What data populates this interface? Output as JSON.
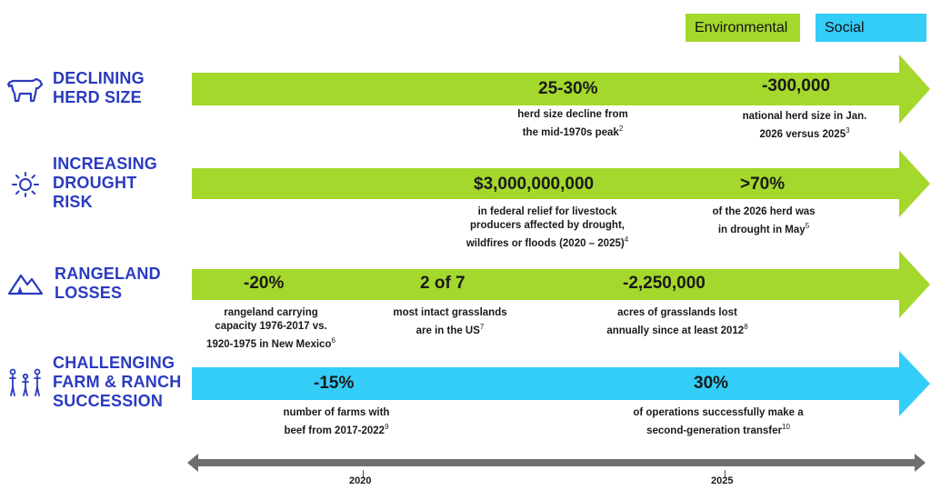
{
  "legend": {
    "environmental": {
      "label": "Environmental",
      "color": "#a4d82c"
    },
    "social": {
      "label": "Social",
      "color": "#33cdf7"
    }
  },
  "rows": [
    {
      "icon": "cow-icon",
      "label_lines": [
        "DECLINING",
        "HERD SIZE"
      ],
      "category": "Environmental",
      "stats": [
        {
          "value": "25-30%",
          "lines": [
            "herd size decline from",
            "the mid-1970s peak"
          ],
          "ref": "2"
        },
        {
          "value": "-300,000",
          "lines": [
            "national herd size in Jan.",
            "2026 versus 2025"
          ],
          "ref": "3"
        }
      ]
    },
    {
      "icon": "sun-icon",
      "label_lines": [
        "INCREASING",
        "DROUGHT",
        "RISK"
      ],
      "category": "Environmental",
      "stats": [
        {
          "value": "$3,000,000,000",
          "lines": [
            "in federal relief for livestock",
            "producers affected by drought,",
            "wildfires or floods (2020 – 2025)"
          ],
          "ref": "4"
        },
        {
          "value": ">70%",
          "lines": [
            "of the 2026 herd was",
            "in drought in May"
          ],
          "ref": "5"
        }
      ]
    },
    {
      "icon": "mountain-icon",
      "label_lines": [
        "RANGELAND",
        "LOSSES"
      ],
      "category": "Environmental",
      "stats": [
        {
          "value": "-20%",
          "lines": [
            "rangeland carrying",
            "capacity 1976-2017 vs.",
            "1920-1975 in New Mexico"
          ],
          "ref": "6"
        },
        {
          "value": "2 of 7",
          "lines": [
            "most intact grasslands",
            "are in the US"
          ],
          "ref": "7"
        },
        {
          "value": "-2,250,000",
          "lines": [
            "acres of grasslands lost",
            "annually since at least 2012"
          ],
          "ref": "8"
        }
      ]
    },
    {
      "icon": "family-icon",
      "label_lines": [
        "CHALLENGING",
        "FARM & RANCH",
        "SUCCESSION"
      ],
      "category": "Social",
      "stats": [
        {
          "value": "-15%",
          "lines": [
            "number of farms with",
            "beef from 2017-2022"
          ],
          "ref": "9"
        },
        {
          "value": "30%",
          "lines": [
            "of operations successfully make a",
            "second-generation transfer"
          ],
          "ref": "10"
        }
      ]
    }
  ],
  "timeline": {
    "years": [
      "2020",
      "2025"
    ]
  }
}
